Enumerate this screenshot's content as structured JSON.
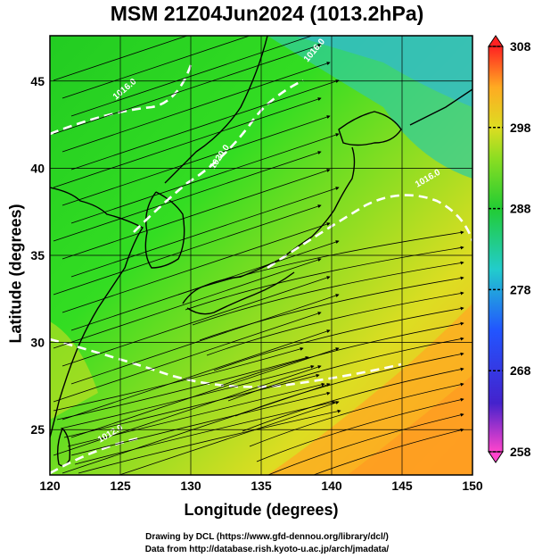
{
  "title": "MSM 21Z04Jun2024 (1013.2hPa)",
  "map": {
    "xlabel": "Longitude (degrees)",
    "ylabel": "Latitude  (degrees)",
    "lon_range": [
      120,
      150
    ],
    "lat_range": [
      22.4,
      47.6
    ],
    "x_ticks": [
      "120",
      "125",
      "130",
      "135",
      "140",
      "145",
      "150"
    ],
    "y_ticks": [
      "25",
      "30",
      "35",
      "40",
      "45"
    ],
    "contour_labels": [
      "1016.0",
      "1020.0",
      "1016.0",
      "1016.0",
      "1012.0"
    ]
  },
  "colorbar": {
    "tick_labels": [
      "308",
      "298",
      "288",
      "278",
      "268",
      "258"
    ],
    "colors": [
      "#ff44cc",
      "#4422cc",
      "#2255ff",
      "#22cccc",
      "#22cc33",
      "#88dd22",
      "#dddd22",
      "#ffaa22",
      "#ff5522",
      "#ff2222"
    ]
  },
  "credits": {
    "line1": "Drawing by DCL (https://www.gfd-dennou.org/library/dcl/)",
    "line2": "Data from http://database.rish.kyoto-u.ac.jp/arch/jmadata/"
  }
}
